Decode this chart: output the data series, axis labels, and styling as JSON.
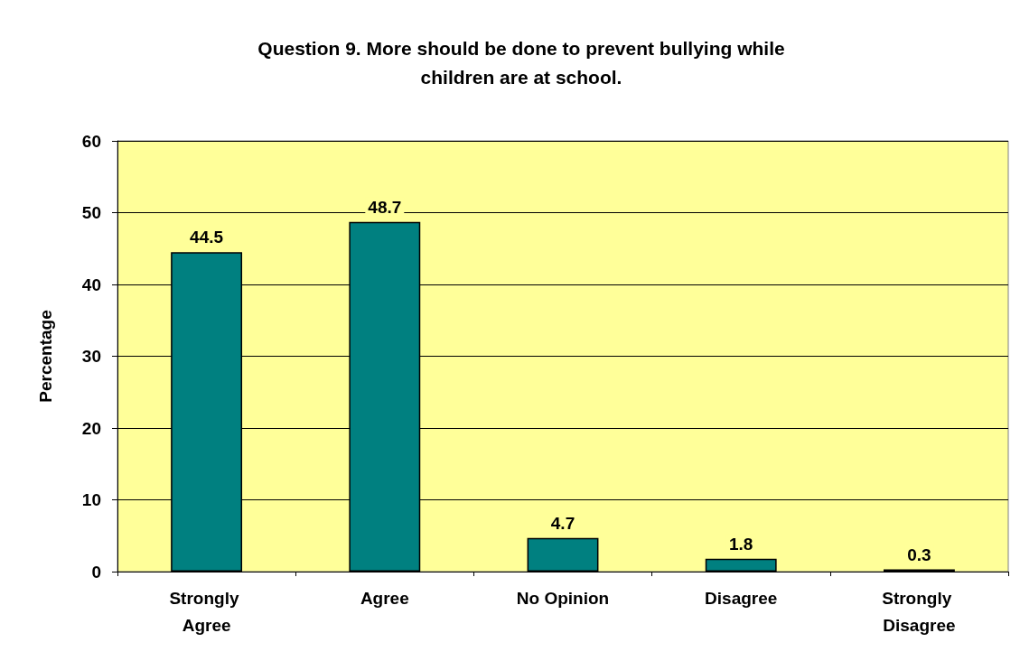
{
  "chart_data": {
    "type": "bar",
    "title": "Question 9. More should be done to prevent bullying while\nchildren are at school.",
    "ylabel": "Percentage",
    "categories": [
      "Strongly Agree",
      "Agree",
      "No Opinion",
      "Disagree",
      "Strongly Disagree"
    ],
    "values": [
      44.5,
      48.7,
      4.7,
      1.8,
      0.3
    ],
    "color": "#008080",
    "ylim": [
      0,
      60
    ],
    "yticks": [
      0,
      10,
      20,
      30,
      40,
      50,
      60
    ],
    "grid": "y",
    "data_labels": true
  }
}
